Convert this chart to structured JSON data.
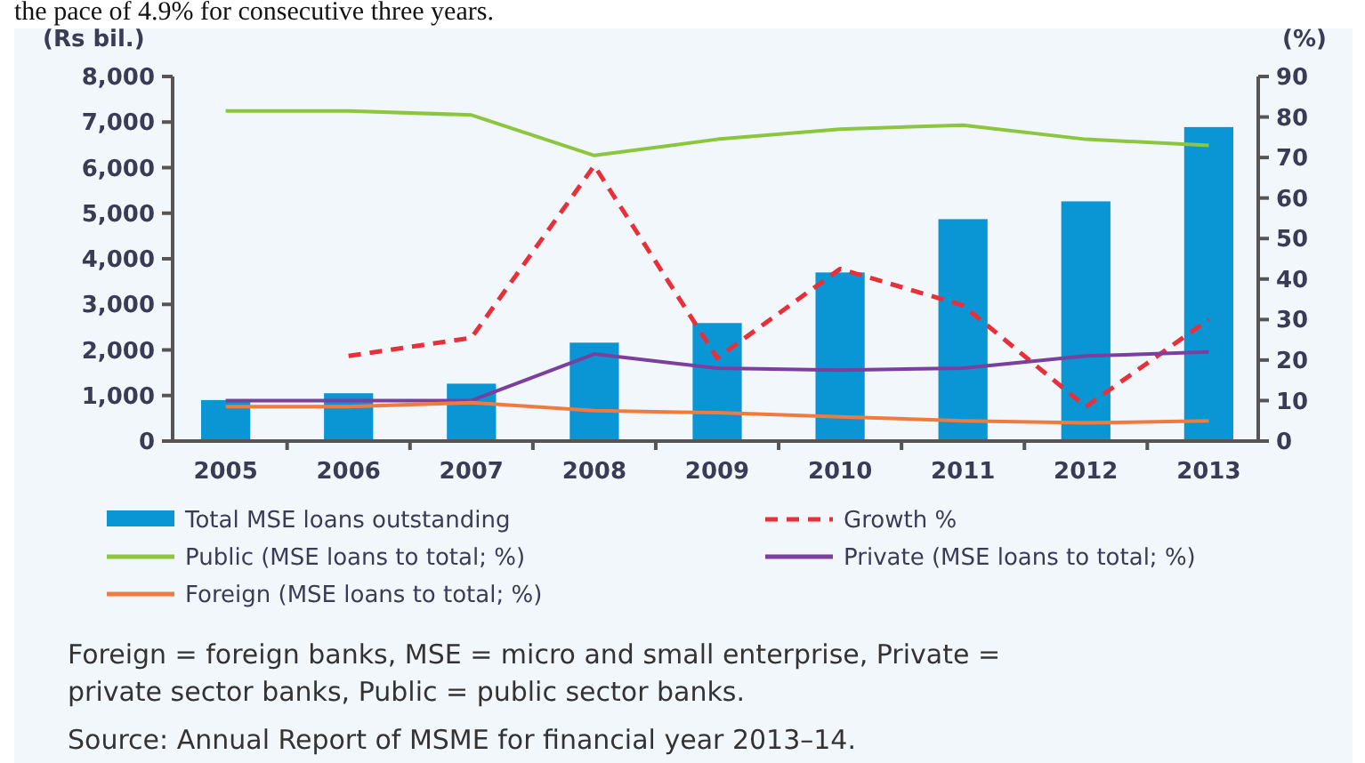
{
  "chart_data": {
    "type": "bar",
    "ylabel": "(Rs bil.)",
    "y2label": "(%)",
    "categories": [
      "2005",
      "2006",
      "2007",
      "2008",
      "2009",
      "2010",
      "2011",
      "2012",
      "2013"
    ],
    "series": [
      {
        "name": "Total MSE loans outstanding",
        "color": "#0a96d4",
        "values": [
          900,
          1050,
          1260,
          2160,
          2590,
          3700,
          4870,
          5260,
          6890
        ]
      },
      {
        "name": "Growth %",
        "type": "line",
        "axis": "y2",
        "color": "#e8303a",
        "line_style": "dashed",
        "values": [
          null,
          21,
          25.5,
          68,
          20.5,
          42.5,
          33.5,
          8.5,
          30
        ]
      },
      {
        "name": "Public (MSE loans to total; %)",
        "type": "line",
        "axis": "y2",
        "color": "#8cc63f",
        "values": [
          81.5,
          81.5,
          80.5,
          70.5,
          74.5,
          77,
          78,
          74.5,
          73
        ]
      },
      {
        "name": "Private (MSE loans to total; %)",
        "type": "line",
        "axis": "y2",
        "color": "#7b3f9e",
        "values": [
          10,
          10,
          10,
          21.5,
          18,
          17.5,
          18,
          21,
          22
        ]
      },
      {
        "name": "Foreign (MSE loans to total; %)",
        "type": "line",
        "axis": "y2",
        "color": "#f07b3f",
        "values": [
          8.5,
          8.5,
          9.5,
          7.5,
          7,
          6,
          5,
          4.5,
          5
        ]
      }
    ],
    "ylim": [
      0,
      8000
    ],
    "yticks": [
      {
        "value": 0,
        "label": "0"
      },
      {
        "value": 1000,
        "label": "1,000"
      },
      {
        "value": 2000,
        "label": "2,000"
      },
      {
        "value": 3000,
        "label": "3,000"
      },
      {
        "value": 4000,
        "label": "4,000"
      },
      {
        "value": 5000,
        "label": "5,000"
      },
      {
        "value": 6000,
        "label": "6,000"
      },
      {
        "value": 7000,
        "label": "7,000"
      },
      {
        "value": 8000,
        "label": "8,000"
      }
    ],
    "y2lim": [
      0,
      90
    ],
    "y2ticks": [
      0,
      10,
      20,
      30,
      40,
      50,
      60,
      70,
      80,
      90
    ],
    "grid": false,
    "legend": "bottom",
    "annotations": [
      "the pace of 4.9% for consecutive three years.",
      "Foreign = foreign banks, MSE = micro and small enterprise, Private = private sector banks, Public = public sector banks.",
      "Source: Annual Report of MSME for financial year 2013–14."
    ]
  }
}
